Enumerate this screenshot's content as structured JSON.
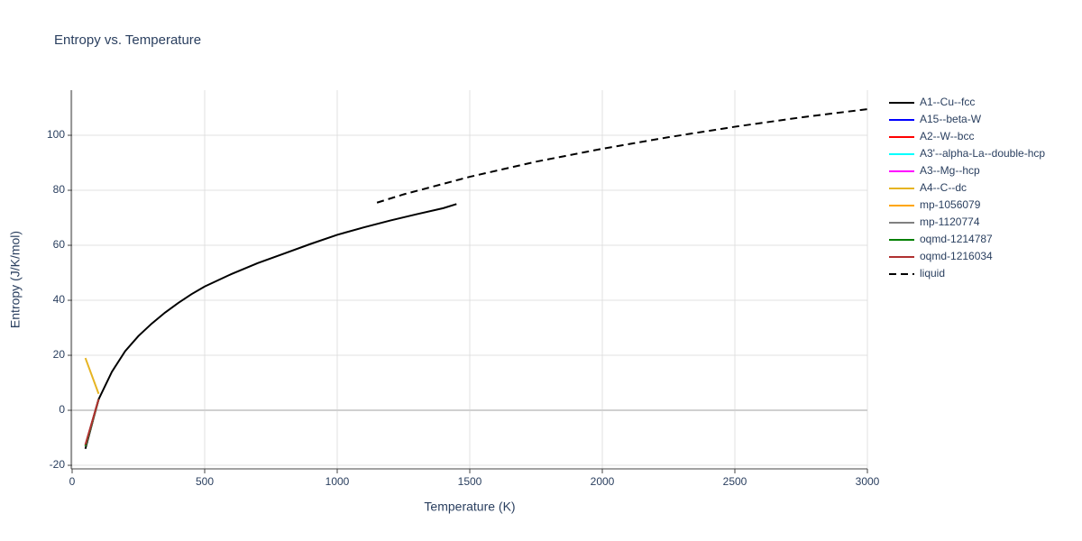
{
  "chart_data": {
    "type": "line",
    "title": "Entropy vs. Temperature",
    "x_label": "Temperature (K)",
    "y_label": "Entropy (J/K/mol)",
    "xlim": [
      0,
      3000
    ],
    "xticks": [
      0,
      500,
      1000,
      1500,
      2000,
      2500,
      3000
    ],
    "ylim": [
      -21.3,
      116.4
    ],
    "yticks": [
      -20,
      0,
      20,
      40,
      60,
      80,
      100
    ],
    "grid": true,
    "legend": "right",
    "series": [
      {
        "name": "A1--Cu--fcc",
        "color": "#000000",
        "x": [
          50,
          100,
          150,
          200,
          250,
          300,
          350,
          400,
          450,
          500,
          600,
          700,
          800,
          900,
          1000,
          1100,
          1200,
          1300,
          1400,
          1450
        ],
        "values": [
          -14,
          4,
          14,
          21.5,
          27,
          31.5,
          35.5,
          39,
          42.2,
          45,
          49.5,
          53.5,
          57,
          60.5,
          63.8,
          66.5,
          69,
          71.3,
          73.5,
          75
        ]
      },
      {
        "name": "A15--beta-W",
        "color": "#0000ff",
        "x": [
          50,
          100
        ],
        "values": [
          -13,
          4
        ]
      },
      {
        "name": "A2--W--bcc",
        "color": "#ff0000",
        "x": [
          50,
          100
        ],
        "values": [
          -13,
          4
        ]
      },
      {
        "name": "A3'--alpha-La--double-hcp",
        "color": "#00ffff",
        "x": [
          50,
          100
        ],
        "values": [
          -13,
          4
        ]
      },
      {
        "name": "A3--Mg--hcp",
        "color": "#ff00ff",
        "x": [
          50,
          100
        ],
        "values": [
          -13,
          4
        ]
      },
      {
        "name": "A4--C--dc",
        "color": "#e6b422",
        "x": [
          50,
          100
        ],
        "values": [
          19,
          6
        ]
      },
      {
        "name": "mp-1056079",
        "color": "#ffa500",
        "x": [
          50,
          100
        ],
        "values": [
          -13,
          4
        ]
      },
      {
        "name": "mp-1120774",
        "color": "#808080",
        "x": [
          50,
          100
        ],
        "values": [
          -13,
          4
        ]
      },
      {
        "name": "oqmd-1214787",
        "color": "#008000",
        "x": [
          50,
          100
        ],
        "values": [
          -13,
          4
        ]
      },
      {
        "name": "oqmd-1216034",
        "color": "#b03030",
        "x": [
          50,
          100
        ],
        "values": [
          -12.5,
          4
        ]
      },
      {
        "name": "liquid",
        "color": "#000000",
        "dash": "dash",
        "x": [
          1150,
          1250,
          1500,
          1750,
          2000,
          2250,
          2500,
          2750,
          3000
        ],
        "values": [
          75.5,
          78.5,
          84.9,
          90.4,
          95.1,
          99.3,
          103.1,
          106.5,
          109.5
        ]
      }
    ]
  }
}
